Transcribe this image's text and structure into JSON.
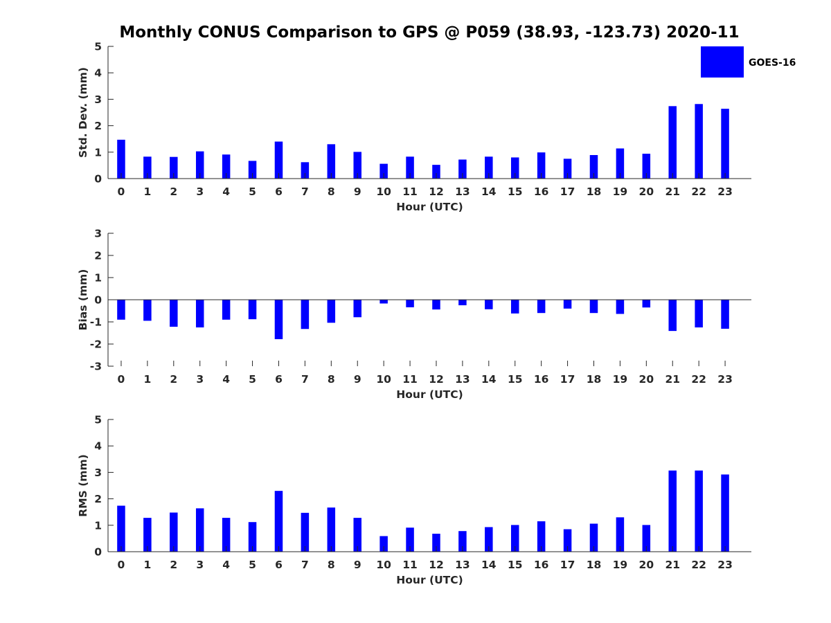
{
  "title": "Monthly CONUS Comparison to GPS @ P059 (38.93, -123.73) 2020-11",
  "legend": {
    "label": "GOES-16",
    "color": "#0000ff"
  },
  "chart_data": [
    {
      "type": "bar",
      "categories": [
        "0",
        "1",
        "2",
        "3",
        "4",
        "5",
        "6",
        "7",
        "8",
        "9",
        "10",
        "11",
        "12",
        "13",
        "14",
        "15",
        "16",
        "17",
        "18",
        "19",
        "20",
        "21",
        "22",
        "23"
      ],
      "series": [
        {
          "name": "GOES-16",
          "color": "#0000ff",
          "values": [
            1.47,
            0.83,
            0.82,
            1.03,
            0.91,
            0.67,
            1.4,
            0.62,
            1.3,
            1.01,
            0.56,
            0.83,
            0.52,
            0.72,
            0.83,
            0.8,
            0.99,
            0.75,
            0.89,
            1.14,
            0.94,
            2.74,
            2.82,
            2.64
          ]
        }
      ],
      "xlabel": "Hour (UTC)",
      "ylabel": "Std. Dev. (mm)",
      "ylim": [
        0,
        5
      ],
      "yticks": [
        "0",
        "1",
        "2",
        "3",
        "4",
        "5"
      ],
      "legend": "top-right",
      "grid": false
    },
    {
      "type": "bar",
      "categories": [
        "0",
        "1",
        "2",
        "3",
        "4",
        "5",
        "6",
        "7",
        "8",
        "9",
        "10",
        "11",
        "12",
        "13",
        "14",
        "15",
        "16",
        "17",
        "18",
        "19",
        "20",
        "21",
        "22",
        "23"
      ],
      "series": [
        {
          "name": "GOES-16",
          "color": "#0000ff",
          "values": [
            -0.9,
            -0.95,
            -1.22,
            -1.25,
            -0.9,
            -0.88,
            -1.78,
            -1.32,
            -1.04,
            -0.79,
            -0.17,
            -0.34,
            -0.44,
            -0.25,
            -0.43,
            -0.62,
            -0.6,
            -0.4,
            -0.6,
            -0.64,
            -0.35,
            -1.41,
            -1.25,
            -1.31
          ]
        }
      ],
      "xlabel": "Hour (UTC)",
      "ylabel": "Bias (mm)",
      "ylim": [
        -3,
        3
      ],
      "yticks": [
        "-3",
        "-2",
        "-1",
        "0",
        "1",
        "2",
        "3"
      ],
      "grid": false
    },
    {
      "type": "bar",
      "categories": [
        "0",
        "1",
        "2",
        "3",
        "4",
        "5",
        "6",
        "7",
        "8",
        "9",
        "10",
        "11",
        "12",
        "13",
        "14",
        "15",
        "16",
        "17",
        "18",
        "19",
        "20",
        "21",
        "22",
        "23"
      ],
      "series": [
        {
          "name": "GOES-16",
          "color": "#0000ff",
          "values": [
            1.74,
            1.28,
            1.48,
            1.64,
            1.28,
            1.12,
            2.3,
            1.47,
            1.67,
            1.28,
            0.59,
            0.91,
            0.68,
            0.78,
            0.93,
            1.01,
            1.15,
            0.85,
            1.06,
            1.3,
            1.01,
            3.07,
            3.07,
            2.92
          ]
        }
      ],
      "xlabel": "Hour (UTC)",
      "ylabel": "RMS (mm)",
      "ylim": [
        0,
        5
      ],
      "yticks": [
        "0",
        "1",
        "2",
        "3",
        "4",
        "5"
      ],
      "grid": false
    }
  ]
}
